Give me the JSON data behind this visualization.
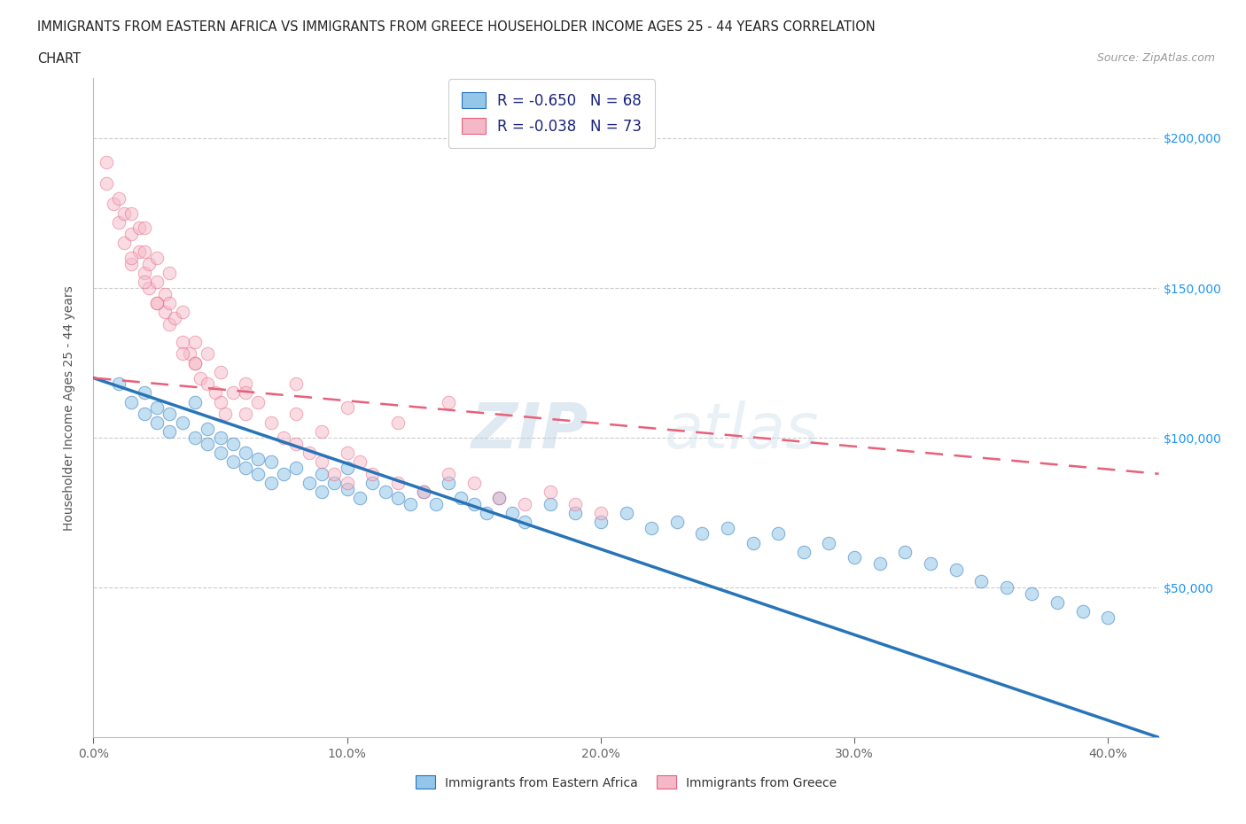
{
  "title_line1": "IMMIGRANTS FROM EASTERN AFRICA VS IMMIGRANTS FROM GREECE HOUSEHOLDER INCOME AGES 25 - 44 YEARS CORRELATION",
  "title_line2": "CHART",
  "source_text": "Source: ZipAtlas.com",
  "ylabel": "Householder Income Ages 25 - 44 years",
  "xlabel_ticks": [
    "0.0%",
    "10.0%",
    "20.0%",
    "30.0%",
    "40.0%"
  ],
  "xlabel_vals": [
    0.0,
    0.1,
    0.2,
    0.3,
    0.4
  ],
  "ytick_labels": [
    "$50,000",
    "$100,000",
    "$150,000",
    "$200,000"
  ],
  "ytick_vals": [
    50000,
    100000,
    150000,
    200000
  ],
  "xlim": [
    0.0,
    0.42
  ],
  "ylim": [
    0,
    220000
  ],
  "blue_color": "#93c6e8",
  "pink_color": "#f4b8c8",
  "blue_line_color": "#2874b8",
  "pink_line_color": "#e8607a",
  "R_blue": -0.65,
  "N_blue": 68,
  "R_pink": -0.038,
  "N_pink": 73,
  "legend_label_blue": "Immigrants from Eastern Africa",
  "legend_label_pink": "Immigrants from Greece",
  "watermark_zip": "ZIP",
  "watermark_atlas": "atlas",
  "blue_line_x0": 0.0,
  "blue_line_y0": 120000,
  "blue_line_x1": 0.42,
  "blue_line_y1": 0,
  "pink_line_x0": 0.0,
  "pink_line_y0": 120000,
  "pink_line_x1": 0.42,
  "pink_line_y1": 88000,
  "blue_scatter_x": [
    0.01,
    0.015,
    0.02,
    0.02,
    0.025,
    0.025,
    0.03,
    0.03,
    0.035,
    0.04,
    0.04,
    0.045,
    0.045,
    0.05,
    0.05,
    0.055,
    0.055,
    0.06,
    0.06,
    0.065,
    0.065,
    0.07,
    0.07,
    0.075,
    0.08,
    0.085,
    0.09,
    0.09,
    0.095,
    0.1,
    0.1,
    0.105,
    0.11,
    0.115,
    0.12,
    0.125,
    0.13,
    0.135,
    0.14,
    0.145,
    0.15,
    0.155,
    0.16,
    0.165,
    0.17,
    0.18,
    0.19,
    0.2,
    0.21,
    0.22,
    0.23,
    0.24,
    0.25,
    0.26,
    0.27,
    0.28,
    0.29,
    0.3,
    0.31,
    0.32,
    0.33,
    0.34,
    0.35,
    0.36,
    0.37,
    0.38,
    0.39,
    0.4
  ],
  "blue_scatter_y": [
    118000,
    112000,
    115000,
    108000,
    110000,
    105000,
    108000,
    102000,
    105000,
    100000,
    112000,
    98000,
    103000,
    95000,
    100000,
    92000,
    98000,
    90000,
    95000,
    88000,
    93000,
    85000,
    92000,
    88000,
    90000,
    85000,
    88000,
    82000,
    85000,
    83000,
    90000,
    80000,
    85000,
    82000,
    80000,
    78000,
    82000,
    78000,
    85000,
    80000,
    78000,
    75000,
    80000,
    75000,
    72000,
    78000,
    75000,
    72000,
    75000,
    70000,
    72000,
    68000,
    70000,
    65000,
    68000,
    62000,
    65000,
    60000,
    58000,
    62000,
    58000,
    56000,
    52000,
    50000,
    48000,
    45000,
    42000,
    40000
  ],
  "pink_scatter_x": [
    0.005,
    0.005,
    0.008,
    0.01,
    0.01,
    0.012,
    0.012,
    0.015,
    0.015,
    0.015,
    0.018,
    0.018,
    0.02,
    0.02,
    0.02,
    0.022,
    0.022,
    0.025,
    0.025,
    0.025,
    0.028,
    0.028,
    0.03,
    0.03,
    0.03,
    0.032,
    0.035,
    0.035,
    0.038,
    0.04,
    0.04,
    0.042,
    0.045,
    0.045,
    0.048,
    0.05,
    0.05,
    0.052,
    0.055,
    0.06,
    0.06,
    0.065,
    0.07,
    0.075,
    0.08,
    0.08,
    0.085,
    0.09,
    0.09,
    0.095,
    0.1,
    0.1,
    0.105,
    0.11,
    0.12,
    0.13,
    0.14,
    0.15,
    0.16,
    0.17,
    0.18,
    0.19,
    0.2,
    0.1,
    0.12,
    0.14,
    0.08,
    0.06,
    0.04,
    0.035,
    0.025,
    0.02,
    0.015
  ],
  "pink_scatter_y": [
    192000,
    185000,
    178000,
    172000,
    180000,
    165000,
    175000,
    158000,
    168000,
    175000,
    162000,
    170000,
    155000,
    162000,
    170000,
    150000,
    158000,
    145000,
    152000,
    160000,
    142000,
    148000,
    138000,
    145000,
    155000,
    140000,
    132000,
    142000,
    128000,
    125000,
    132000,
    120000,
    118000,
    128000,
    115000,
    112000,
    122000,
    108000,
    115000,
    108000,
    118000,
    112000,
    105000,
    100000,
    98000,
    108000,
    95000,
    92000,
    102000,
    88000,
    85000,
    95000,
    92000,
    88000,
    85000,
    82000,
    88000,
    85000,
    80000,
    78000,
    82000,
    78000,
    75000,
    110000,
    105000,
    112000,
    118000,
    115000,
    125000,
    128000,
    145000,
    152000,
    160000
  ]
}
